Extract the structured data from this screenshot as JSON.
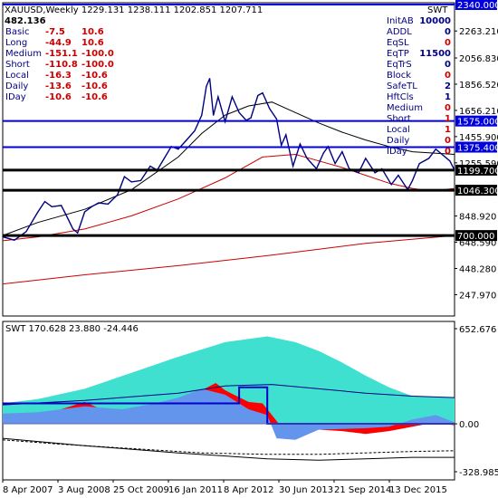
{
  "header": {
    "title": "XAUUSD,Weekly",
    "ohlc": "1229.131 1238.111 1202.851 1207.711",
    "value": "482.136",
    "indicator_label": "SWT"
  },
  "left_panel": [
    {
      "label": "Basic",
      "a": "-7.5",
      "b": "10.6"
    },
    {
      "label": "Long",
      "a": "-44.9",
      "b": "10.6"
    },
    {
      "label": "Medium",
      "a": "-151.1",
      "b": "-100.0"
    },
    {
      "label": "Short",
      "a": "-110.8",
      "b": "-100.0"
    },
    {
      "label": "Local",
      "a": "-16.3",
      "b": "-10.6"
    },
    {
      "label": "Daily",
      "a": "-13.6",
      "b": "-10.6"
    },
    {
      "label": "IDay",
      "a": "-10.6",
      "b": "-10.6"
    }
  ],
  "right_panel": [
    {
      "label": "InitAB",
      "value": "10000",
      "color": "#000080"
    },
    {
      "label": "ADDL",
      "value": "0",
      "color": "#000080"
    },
    {
      "label": "EqSL",
      "value": "0",
      "color": "#cc0000"
    },
    {
      "label": "EqTP",
      "value": "11500",
      "color": "#000080"
    },
    {
      "label": "EqTrS",
      "value": "0",
      "color": "#000080"
    },
    {
      "label": "Block",
      "value": "0",
      "color": "#cc0000"
    },
    {
      "label": "SafeTL",
      "value": "2",
      "color": "#000080"
    },
    {
      "label": "HftCls",
      "value": "1",
      "color": "#000080"
    },
    {
      "label": "Medium",
      "value": "0",
      "color": "#cc0000"
    },
    {
      "label": "Short",
      "value": "1",
      "color": "#cc0000"
    },
    {
      "label": "Local",
      "value": "1",
      "color": "#cc0000"
    },
    {
      "label": "Daily",
      "value": "0",
      "color": "#cc0000"
    },
    {
      "label": "IDay",
      "value": "0",
      "color": "#cc0000"
    }
  ],
  "price_axis_ticks": [
    "2263.210",
    "2056.830",
    "1856.520",
    "1656.210",
    "1455.900",
    "1255.590",
    "848.920",
    "648.590",
    "448.280",
    "247.970"
  ],
  "indicator_header": "SWT 170.628 23.880 -24.446",
  "indicator_axis_ticks": [
    "652.676",
    "0.00",
    "-328.985"
  ],
  "colors": {
    "price": "#000080",
    "ma_fast": "#000000",
    "ma_slow": "#cc0000",
    "level_line": "#0000dd",
    "cyan_fill": "#40e0d0",
    "red_fill": "#ff0000",
    "blue_fill": "#6495ed"
  },
  "chart_data": {
    "type": "line",
    "title": "XAUUSD,Weekly",
    "x_labels": [
      "8 Apr 2007",
      "3 Aug 2008",
      "25 Oct 2009",
      "16 Jan 2011",
      "8 Apr 2012",
      "30 Jun 2013",
      "21 Sep 2014",
      "13 Dec 2015"
    ],
    "ylim": [
      247.97,
      2400
    ],
    "series": [
      {
        "name": "XAUUSD",
        "values": [
          [
            2007.25,
            690
          ],
          [
            2007.5,
            665
          ],
          [
            2007.75,
            730
          ],
          [
            2008.0,
            880
          ],
          [
            2008.15,
            960
          ],
          [
            2008.3,
            920
          ],
          [
            2008.5,
            930
          ],
          [
            2008.6,
            860
          ],
          [
            2008.75,
            750
          ],
          [
            2008.85,
            720
          ],
          [
            2009.0,
            880
          ],
          [
            2009.15,
            920
          ],
          [
            2009.3,
            950
          ],
          [
            2009.5,
            940
          ],
          [
            2009.7,
            1010
          ],
          [
            2009.85,
            1150
          ],
          [
            2010.0,
            1110
          ],
          [
            2010.2,
            1120
          ],
          [
            2010.4,
            1230
          ],
          [
            2010.55,
            1200
          ],
          [
            2010.7,
            1290
          ],
          [
            2010.85,
            1380
          ],
          [
            2011.0,
            1360
          ],
          [
            2011.15,
            1420
          ],
          [
            2011.35,
            1500
          ],
          [
            2011.5,
            1620
          ],
          [
            2011.6,
            1840
          ],
          [
            2011.67,
            1900
          ],
          [
            2011.75,
            1620
          ],
          [
            2011.85,
            1760
          ],
          [
            2012.0,
            1570
          ],
          [
            2012.15,
            1760
          ],
          [
            2012.3,
            1640
          ],
          [
            2012.45,
            1580
          ],
          [
            2012.55,
            1600
          ],
          [
            2012.7,
            1770
          ],
          [
            2012.8,
            1790
          ],
          [
            2012.95,
            1670
          ],
          [
            2013.1,
            1590
          ],
          [
            2013.2,
            1390
          ],
          [
            2013.3,
            1470
          ],
          [
            2013.45,
            1230
          ],
          [
            2013.6,
            1400
          ],
          [
            2013.75,
            1290
          ],
          [
            2013.95,
            1210
          ],
          [
            2014.1,
            1330
          ],
          [
            2014.2,
            1380
          ],
          [
            2014.35,
            1250
          ],
          [
            2014.5,
            1340
          ],
          [
            2014.65,
            1210
          ],
          [
            2014.85,
            1180
          ],
          [
            2015.0,
            1290
          ],
          [
            2015.2,
            1180
          ],
          [
            2015.35,
            1210
          ],
          [
            2015.55,
            1090
          ],
          [
            2015.7,
            1160
          ],
          [
            2015.9,
            1050
          ],
          [
            2016.0,
            1120
          ],
          [
            2016.15,
            1250
          ],
          [
            2016.35,
            1290
          ],
          [
            2016.5,
            1360
          ],
          [
            2016.6,
            1330
          ],
          [
            2016.8,
            1270
          ],
          [
            2016.9,
            1200
          ]
        ]
      },
      {
        "name": "MA fast",
        "values": [
          [
            2007.25,
            700
          ],
          [
            2008.0,
            800
          ],
          [
            2009.0,
            900
          ],
          [
            2010.0,
            1050
          ],
          [
            2011.0,
            1300
          ],
          [
            2011.5,
            1480
          ],
          [
            2012.0,
            1620
          ],
          [
            2012.5,
            1690
          ],
          [
            2013.0,
            1720
          ],
          [
            2013.5,
            1640
          ],
          [
            2014.0,
            1560
          ],
          [
            2014.5,
            1490
          ],
          [
            2015.0,
            1430
          ],
          [
            2015.5,
            1380
          ],
          [
            2016.0,
            1340
          ],
          [
            2016.9,
            1320
          ]
        ]
      },
      {
        "name": "MA slow",
        "values": [
          [
            2007.25,
            660
          ],
          [
            2008.0,
            690
          ],
          [
            2009.0,
            750
          ],
          [
            2010.0,
            850
          ],
          [
            2011.0,
            980
          ],
          [
            2012.0,
            1140
          ],
          [
            2012.8,
            1300
          ],
          [
            2013.5,
            1320
          ],
          [
            2014.0,
            1270
          ],
          [
            2014.5,
            1220
          ],
          [
            2015.0,
            1160
          ],
          [
            2015.5,
            1100
          ],
          [
            2016.0,
            1060
          ],
          [
            2016.4,
            1040
          ],
          [
            2016.9,
            1060
          ]
        ]
      },
      {
        "name": "MA long",
        "values": [
          [
            2007.25,
            330
          ],
          [
            2009.0,
            400
          ],
          [
            2011.0,
            470
          ],
          [
            2013.0,
            550
          ],
          [
            2015.0,
            640
          ],
          [
            2016.9,
            700
          ]
        ]
      }
    ],
    "horizontal_levels": [
      {
        "value": 2340.0,
        "label": "2340.000",
        "style": "blue"
      },
      {
        "value": 1575.0,
        "label": "1575.000",
        "style": "blue"
      },
      {
        "value": 1375.4,
        "label": "1375.400",
        "style": "blue"
      },
      {
        "value": 1199.7,
        "label": "1199.700",
        "style": "black"
      },
      {
        "value": 1046.3,
        "label": "1046.300",
        "style": "black"
      },
      {
        "value": 700.0,
        "label": "700.000",
        "style": "black"
      }
    ],
    "indicator": {
      "ylim": [
        -328.985,
        652.676
      ],
      "cyan_area": [
        [
          2007.25,
          140
        ],
        [
          2008.0,
          170
        ],
        [
          2009.0,
          240
        ],
        [
          2010.0,
          350
        ],
        [
          2011.0,
          460
        ],
        [
          2012.0,
          560
        ],
        [
          2012.9,
          600
        ],
        [
          2013.5,
          560
        ],
        [
          2014.0,
          500
        ],
        [
          2014.5,
          420
        ],
        [
          2015.0,
          330
        ],
        [
          2015.5,
          250
        ],
        [
          2016.0,
          190
        ],
        [
          2016.9,
          180
        ]
      ],
      "red_area": [
        [
          2007.25,
          50
        ],
        [
          2008.0,
          60
        ],
        [
          2008.5,
          100
        ],
        [
          2009.0,
          150
        ],
        [
          2009.5,
          80
        ],
        [
          2010.0,
          100
        ],
        [
          2010.5,
          130
        ],
        [
          2011.0,
          150
        ],
        [
          2011.5,
          230
        ],
        [
          2011.8,
          280
        ],
        [
          2012.0,
          230
        ],
        [
          2012.5,
          150
        ],
        [
          2012.8,
          140
        ],
        [
          2013.0,
          60
        ],
        [
          2013.3,
          -60
        ],
        [
          2013.6,
          -80
        ],
        [
          2014.0,
          -40
        ],
        [
          2014.5,
          -50
        ],
        [
          2015.0,
          -70
        ],
        [
          2015.5,
          -50
        ],
        [
          2016.0,
          -20
        ],
        [
          2016.5,
          10
        ],
        [
          2016.9,
          -10
        ]
      ],
      "blue_area": [
        [
          2007.25,
          70
        ],
        [
          2008.0,
          80
        ],
        [
          2009.0,
          120
        ],
        [
          2009.8,
          100
        ],
        [
          2010.5,
          140
        ],
        [
          2011.0,
          180
        ],
        [
          2011.5,
          240
        ],
        [
          2012.0,
          200
        ],
        [
          2012.5,
          100
        ],
        [
          2012.9,
          60
        ],
        [
          2013.1,
          -100
        ],
        [
          2013.5,
          -110
        ],
        [
          2014.0,
          -40
        ],
        [
          2015.0,
          -30
        ],
        [
          2015.5,
          -20
        ],
        [
          2016.0,
          30
        ],
        [
          2016.5,
          60
        ],
        [
          2016.9,
          10
        ]
      ],
      "upper_line": [
        [
          2007.25,
          130
        ],
        [
          2009.0,
          160
        ],
        [
          2011.0,
          210
        ],
        [
          2012.0,
          260
        ],
        [
          2013.0,
          270
        ],
        [
          2014.0,
          240
        ],
        [
          2015.0,
          210
        ],
        [
          2016.0,
          190
        ],
        [
          2016.9,
          180
        ]
      ],
      "step_line": [
        [
          2007.25,
          140
        ],
        [
          2012.3,
          140
        ],
        [
          2012.3,
          250
        ],
        [
          2012.9,
          250
        ],
        [
          2012.9,
          0
        ],
        [
          2016.9,
          0
        ]
      ],
      "lower_line": [
        [
          2007.25,
          -100
        ],
        [
          2009.0,
          -150
        ],
        [
          2011.0,
          -200
        ],
        [
          2012.9,
          -240
        ],
        [
          2014.0,
          -250
        ],
        [
          2015.0,
          -240
        ],
        [
          2016.0,
          -230
        ],
        [
          2016.9,
          -230
        ]
      ],
      "dashed_line": [
        [
          2007.25,
          -110
        ],
        [
          2008.5,
          -140
        ],
        [
          2010.0,
          -170
        ],
        [
          2011.5,
          -200
        ],
        [
          2012.9,
          -210
        ],
        [
          2014.0,
          -210
        ],
        [
          2015.0,
          -200
        ],
        [
          2016.0,
          -190
        ],
        [
          2016.9,
          -185
        ]
      ]
    }
  }
}
